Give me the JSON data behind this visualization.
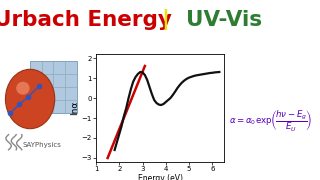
{
  "title_left": "Urbach Energy",
  "title_right": "UV-Vis",
  "title_separator": "|",
  "title_left_color": "#cc0000",
  "title_right_color": "#2e7d32",
  "title_separator_color": "#e8e800",
  "strip_color_top": "#00aaff",
  "strip_color_mid": "#ff00cc",
  "ylabel": "lnα",
  "xlabel": "Energy (eV)",
  "xlim": [
    1,
    6.5
  ],
  "ylim": [
    -3.2,
    2.2
  ],
  "xticks": [
    1,
    2,
    3,
    4,
    5,
    6
  ],
  "yticks": [
    -3,
    -2,
    -1,
    0,
    1,
    2
  ],
  "background_color": "#ffffff",
  "curve_color": "#111111",
  "line_color": "#cc0000",
  "formula_color": "#5500bb",
  "line_x": [
    1.5,
    3.1
  ],
  "line_y": [
    -3.0,
    1.6
  ],
  "curve_x": [
    1.8,
    1.9,
    2.0,
    2.1,
    2.2,
    2.3,
    2.4,
    2.5,
    2.6,
    2.7,
    2.8,
    2.9,
    3.0,
    3.1,
    3.2,
    3.3,
    3.4,
    3.5,
    3.6,
    3.7,
    3.8,
    3.9,
    4.0,
    4.1,
    4.2,
    4.3,
    4.4,
    4.5,
    4.6,
    4.7,
    4.8,
    4.9,
    5.0,
    5.1,
    5.2,
    5.3,
    5.4,
    5.5,
    5.6,
    5.7,
    5.8,
    5.9,
    6.0,
    6.1,
    6.2,
    6.3
  ],
  "curve_y": [
    -2.6,
    -2.2,
    -1.8,
    -1.4,
    -0.9,
    -0.5,
    0.0,
    0.45,
    0.82,
    1.05,
    1.2,
    1.3,
    1.28,
    1.15,
    0.9,
    0.55,
    0.2,
    -0.1,
    -0.25,
    -0.33,
    -0.35,
    -0.3,
    -0.2,
    -0.1,
    0.0,
    0.15,
    0.32,
    0.5,
    0.65,
    0.78,
    0.88,
    0.96,
    1.02,
    1.06,
    1.1,
    1.13,
    1.15,
    1.17,
    1.19,
    1.21,
    1.23,
    1.25,
    1.26,
    1.28,
    1.29,
    1.3
  ],
  "logo_grid_color": "#b0c8e0",
  "logo_sphere_color": "#cc4422",
  "logo_dot_color": "#3355bb",
  "sayph_color": "#555555",
  "sayph_steam_color": "#888888"
}
